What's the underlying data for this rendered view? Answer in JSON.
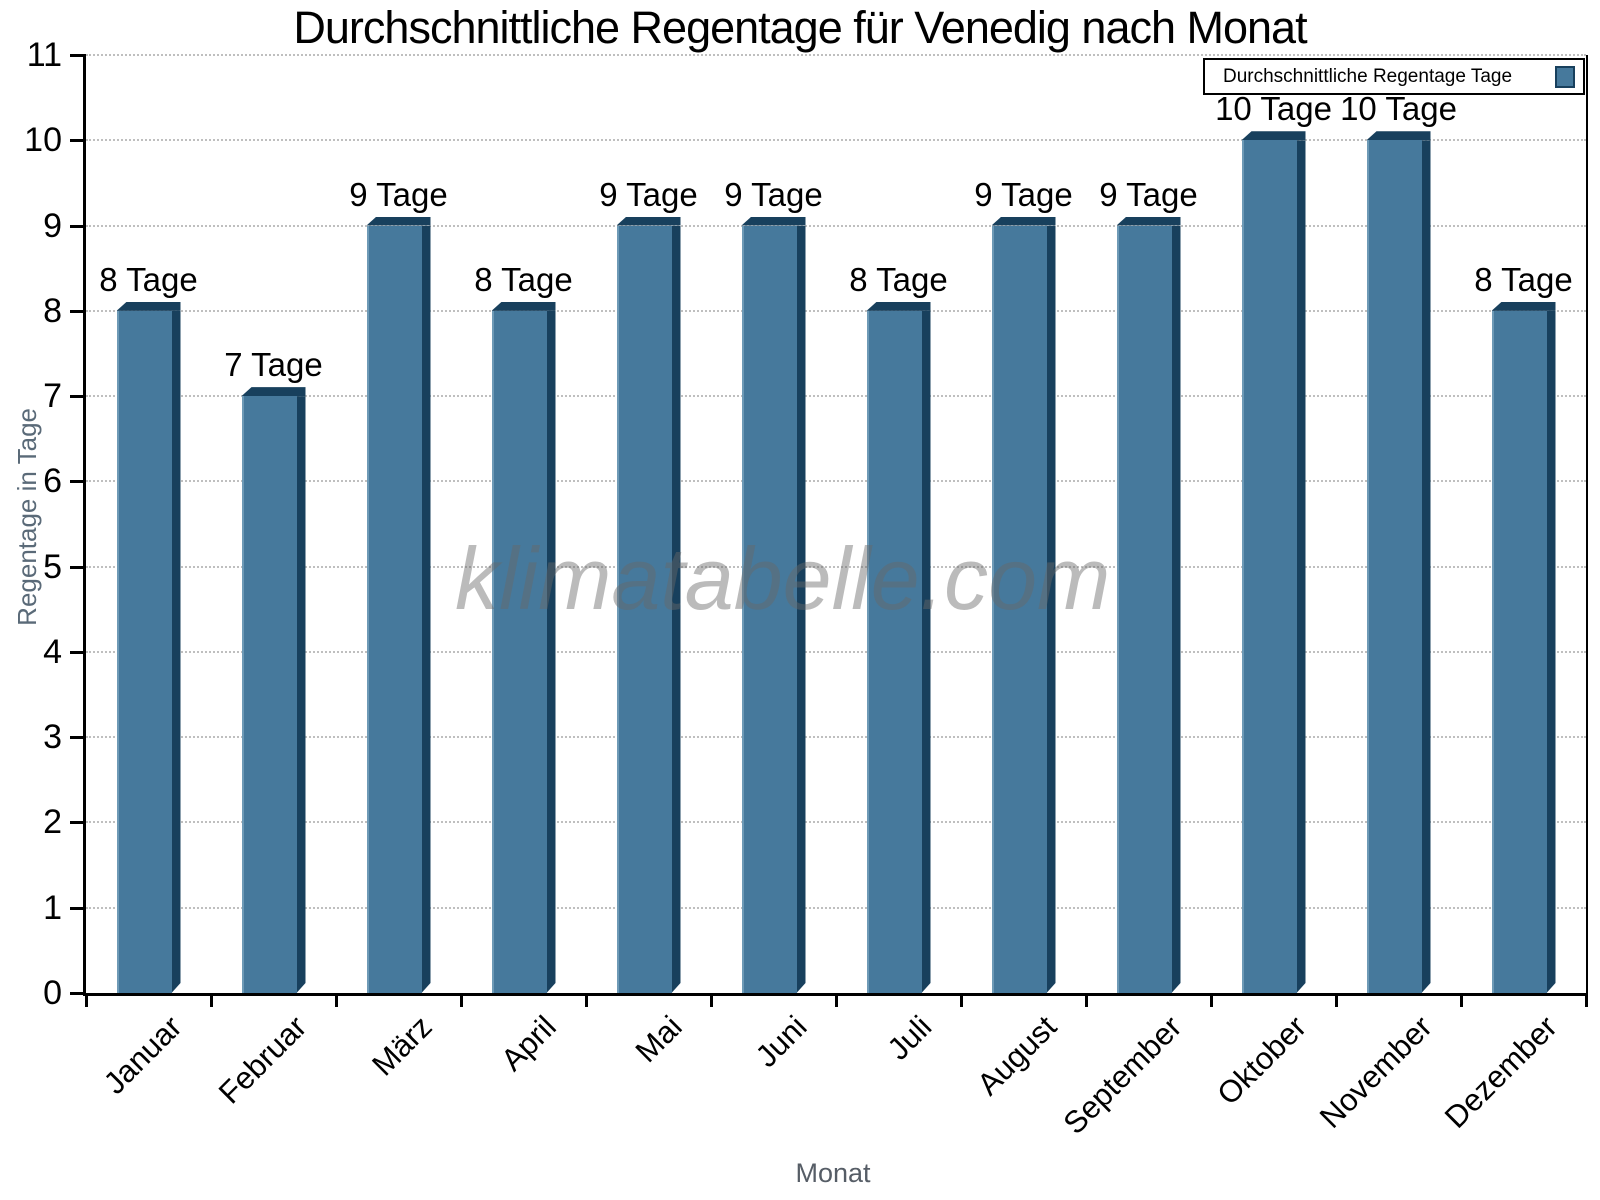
{
  "title": "Durchschnittliche Regentage für Venedig nach Monat",
  "watermark": "klimatabelle.com",
  "legend": {
    "label": "Durchschnittliche Regentage Tage",
    "position": "top-right"
  },
  "axes": {
    "x_title": "Monat",
    "y_title": "Regentage in Tage",
    "y_ticks": [
      0,
      1,
      2,
      3,
      4,
      5,
      6,
      7,
      8,
      9,
      10,
      11
    ]
  },
  "colors": {
    "bar_face": "#46799c",
    "bar_edge_dark": "#18405d",
    "bar_highlight": "#6e9ab6",
    "grid": "#bfbfbf",
    "axis": "#000000",
    "axis_title_text": "#5a6a78",
    "x_axis_title_text": "#565d66",
    "watermark_text": "#a9a9a9",
    "background": "#ffffff"
  },
  "chart_data": {
    "type": "bar",
    "title": "Durchschnittliche Regentage für Venedig nach Monat",
    "xlabel": "Monat",
    "ylabel": "Regentage in Tage",
    "categories": [
      "Januar",
      "Februar",
      "März",
      "April",
      "Mai",
      "Juni",
      "Juli",
      "August",
      "September",
      "Oktober",
      "November",
      "Dezember"
    ],
    "values": [
      8,
      7,
      9,
      8,
      9,
      9,
      8,
      9,
      9,
      10,
      10,
      8
    ],
    "bar_labels": [
      "8 Tage",
      "7 Tage",
      "9 Tage",
      "8 Tage",
      "9 Tage",
      "9 Tage",
      "8 Tage",
      "9 Tage",
      "9 Tage",
      "10 Tage",
      "10 Tage",
      "8 Tage"
    ],
    "series_name": "Durchschnittliche Regentage Tage",
    "unit_suffix": "Tage",
    "ylim": [
      0,
      11
    ],
    "grid": "horizontal-dotted",
    "legend_position": "top-right",
    "bar_style": "3d-bevel"
  }
}
